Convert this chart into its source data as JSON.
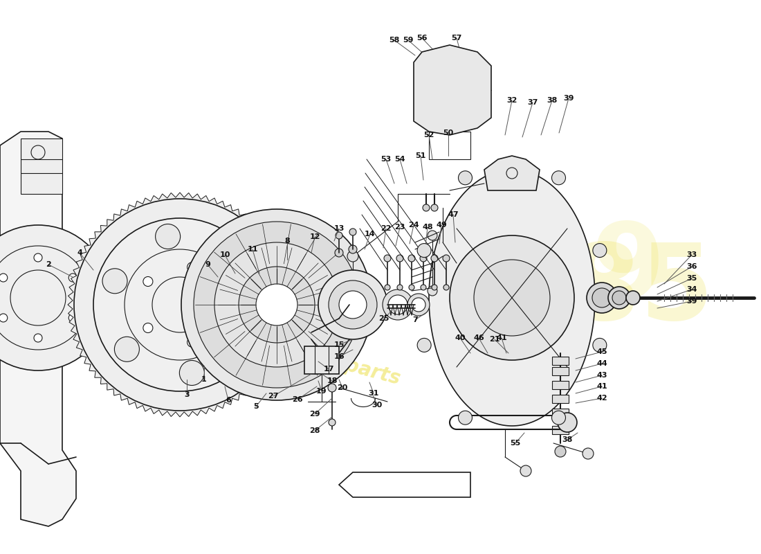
{
  "bg_color": "#ffffff",
  "line_color": "#1a1a1a",
  "label_color": "#111111",
  "watermark_yellow": "#e8d820",
  "figsize": [
    11.0,
    8.0
  ],
  "dpi": 100
}
